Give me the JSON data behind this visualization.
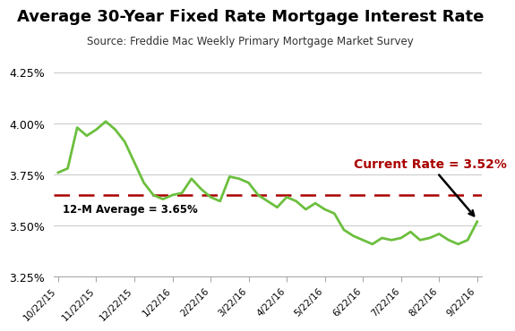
{
  "title": "Average 30-Year Fixed Rate Mortgage Interest Rate",
  "subtitle": "Source: Freddie Mac Weekly Primary Mortgage Market Survey",
  "avg_line": 3.65,
  "avg_label": "12-M Average = 3.65%",
  "current_rate": 3.52,
  "current_label": "Current Rate = 3.52%",
  "line_color": "#6CBF3E",
  "avg_color": "#AA0000",
  "ylim": [
    3.25,
    4.3
  ],
  "yticks": [
    3.25,
    3.5,
    3.75,
    4.0,
    4.25
  ],
  "xtick_labels": [
    "10/22/15",
    "11/22/15",
    "12/22/15",
    "1/22/16",
    "2/22/16",
    "3/22/16",
    "4/22/16",
    "5/22/16",
    "6/22/16",
    "7/22/16",
    "8/22/16",
    "9/22/16"
  ],
  "rates": [
    3.76,
    3.78,
    3.98,
    3.94,
    3.97,
    4.01,
    3.97,
    3.91,
    3.81,
    3.71,
    3.65,
    3.63,
    3.65,
    3.66,
    3.73,
    3.68,
    3.64,
    3.62,
    3.74,
    3.73,
    3.71,
    3.65,
    3.62,
    3.59,
    3.64,
    3.62,
    3.58,
    3.61,
    3.58,
    3.56,
    3.48,
    3.45,
    3.43,
    3.41,
    3.44,
    3.43,
    3.44,
    3.47,
    3.43,
    3.44,
    3.46,
    3.43,
    3.41,
    3.43,
    3.52
  ]
}
